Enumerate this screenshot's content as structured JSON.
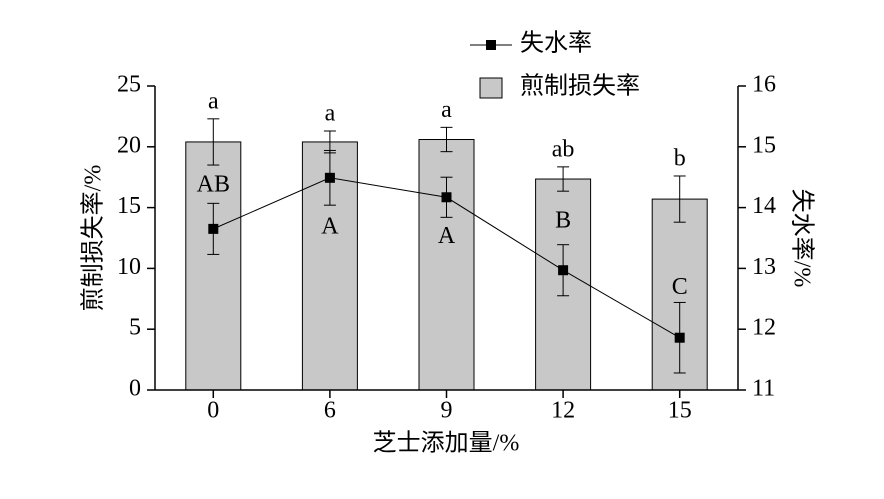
{
  "chart_data": {
    "type": "bar",
    "categories": [
      "0",
      "6",
      "9",
      "12",
      "15"
    ],
    "x_label": "芝士添加量/%",
    "y_label": "煎制损失率/%",
    "y2_label": "失水率/%",
    "ylim": [
      0,
      25
    ],
    "yticks": [
      0,
      5,
      10,
      15,
      20,
      25
    ],
    "y2lim": [
      11,
      16
    ],
    "y2ticks": [
      11,
      12,
      13,
      14,
      15,
      16
    ],
    "legend": "top-right",
    "series": [
      {
        "name": "失水率",
        "type": "line",
        "axis": "y2",
        "color": "#000000",
        "values": [
          13.65,
          14.49,
          14.17,
          12.97,
          11.86
        ],
        "errors": [
          0.42,
          0.45,
          0.33,
          0.42,
          0.58
        ],
        "labels": [
          "AB",
          "A",
          "A",
          "B",
          "C"
        ]
      },
      {
        "name": "煎制损失率",
        "type": "bar",
        "color": "#c8c8c8",
        "values": [
          20.4,
          20.4,
          20.6,
          17.35,
          15.7
        ],
        "errors": [
          1.9,
          0.9,
          1.0,
          1.0,
          1.9
        ],
        "labels": [
          "a",
          "a",
          "a",
          "ab",
          "b"
        ]
      }
    ]
  }
}
